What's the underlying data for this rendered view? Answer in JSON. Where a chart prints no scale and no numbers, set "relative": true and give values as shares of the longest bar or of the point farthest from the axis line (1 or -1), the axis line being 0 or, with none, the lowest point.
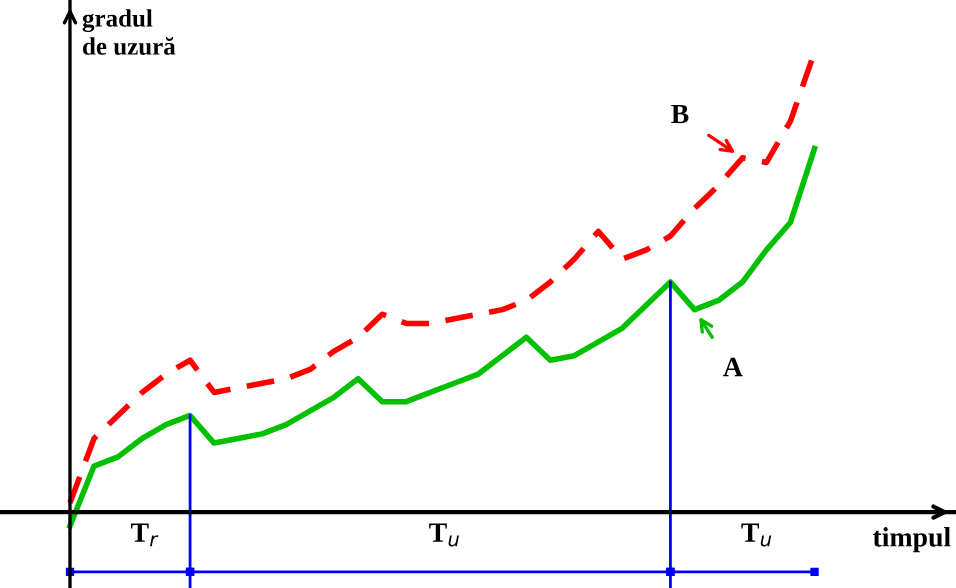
{
  "chart_data": {
    "type": "line",
    "relative": true,
    "xlabel": "timpul",
    "ylabel": "gradul\nde uzură",
    "categories": [
      null,
      null,
      null,
      null,
      null,
      null,
      null,
      null,
      null,
      null,
      null,
      null,
      null,
      null,
      null,
      null,
      null,
      null,
      null,
      null,
      null,
      null,
      null,
      null,
      null,
      null,
      null,
      null,
      null,
      null,
      null,
      null
    ],
    "series": [
      {
        "name": "A",
        "color": "#00c000",
        "line_style": "solid",
        "values": [
          -0.03,
          0.1,
          0.12,
          0.16,
          0.19,
          0.21,
          0.15,
          0.16,
          0.17,
          0.19,
          0.22,
          0.25,
          0.29,
          0.24,
          0.24,
          0.26,
          0.28,
          0.3,
          0.34,
          0.38,
          0.33,
          0.34,
          0.37,
          0.4,
          0.45,
          0.5,
          0.44,
          0.46,
          0.5,
          0.57,
          0.63,
          0.79
        ]
      },
      {
        "name": "B",
        "color": "#ff0000",
        "line_style": "dashed",
        "values": [
          0.02,
          0.16,
          0.21,
          0.26,
          0.3,
          0.33,
          0.26,
          0.27,
          0.28,
          0.29,
          0.31,
          0.35,
          0.38,
          0.43,
          0.41,
          0.41,
          0.42,
          0.43,
          0.44,
          0.46,
          0.5,
          0.55,
          0.61,
          0.55,
          0.57,
          0.6,
          0.66,
          0.71,
          0.77,
          0.76,
          0.85,
          1.0
        ]
      }
    ],
    "annotations": [
      "T$_{r}$",
      "T$_{u}$",
      "T$_{u}$"
    ]
  }
}
